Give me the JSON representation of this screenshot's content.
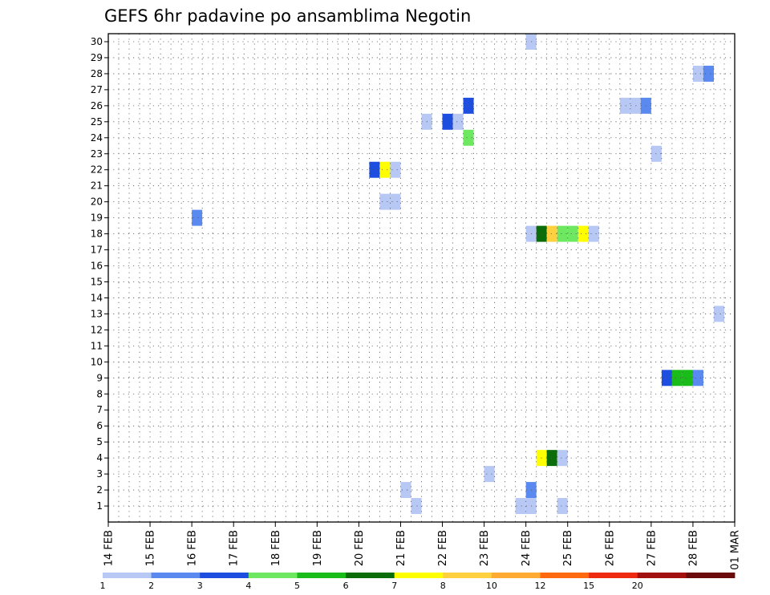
{
  "chart_data": {
    "type": "heatmap",
    "title": "GEFS 6hr padavine po ansamblima Negotin",
    "xlabel": "",
    "ylabel": "",
    "x_tick_labels": [
      "14 FEB",
      "15 FEB",
      "16 FEB",
      "17 FEB",
      "18 FEB",
      "19 FEB",
      "20 FEB",
      "21 FEB",
      "22 FEB",
      "23 FEB",
      "24 FEB",
      "25 FEB",
      "26 FEB",
      "27 FEB",
      "28 FEB",
      "01 MAR"
    ],
    "x_range_days": [
      0,
      15
    ],
    "time_step_hours": 6,
    "y_members": [
      1,
      2,
      3,
      4,
      5,
      6,
      7,
      8,
      9,
      10,
      11,
      12,
      13,
      14,
      15,
      16,
      17,
      18,
      19,
      20,
      21,
      22,
      23,
      24,
      25,
      26,
      27,
      28,
      29,
      30
    ],
    "grid": true,
    "colorbar": {
      "labels": [
        "1",
        "2",
        "3",
        "4",
        "5",
        "6",
        "7",
        "8",
        "10",
        "12",
        "15",
        "20"
      ],
      "colors": [
        "#b7c8f5",
        "#5a8af0",
        "#1d4ee0",
        "#6ee860",
        "#19bc19",
        "#0a6d0a",
        "#ffff00",
        "#ffd040",
        "#ffaa33",
        "#ff6a10",
        "#ee2a10",
        "#a31010",
        "#6a0a0a"
      ]
    },
    "cells": [
      {
        "member": 30,
        "day": 10.0,
        "value": 1.5
      },
      {
        "member": 28,
        "day": 14.0,
        "value": 1.5
      },
      {
        "member": 28,
        "day": 14.25,
        "value": 2.5
      },
      {
        "member": 26,
        "day": 8.5,
        "value": 3.5
      },
      {
        "member": 26,
        "day": 12.25,
        "value": 1.5
      },
      {
        "member": 26,
        "day": 12.5,
        "value": 1.5
      },
      {
        "member": 26,
        "day": 12.75,
        "value": 2.5
      },
      {
        "member": 25,
        "day": 7.5,
        "value": 1.5
      },
      {
        "member": 25,
        "day": 8.0,
        "value": 3.5
      },
      {
        "member": 25,
        "day": 8.25,
        "value": 1.5
      },
      {
        "member": 24,
        "day": 8.5,
        "value": 4.5
      },
      {
        "member": 23,
        "day": 13.0,
        "value": 1.5
      },
      {
        "member": 22,
        "day": 6.25,
        "value": 3.5
      },
      {
        "member": 22,
        "day": 6.5,
        "value": 7.5
      },
      {
        "member": 22,
        "day": 6.75,
        "value": 1.5
      },
      {
        "member": 20,
        "day": 6.5,
        "value": 1.5
      },
      {
        "member": 20,
        "day": 6.75,
        "value": 1.5
      },
      {
        "member": 19,
        "day": 2.0,
        "value": 2.5
      },
      {
        "member": 18,
        "day": 10.0,
        "value": 1.5
      },
      {
        "member": 18,
        "day": 10.25,
        "value": 6.5
      },
      {
        "member": 18,
        "day": 10.5,
        "value": 9
      },
      {
        "member": 18,
        "day": 10.75,
        "value": 4.5
      },
      {
        "member": 18,
        "day": 11.0,
        "value": 4.5
      },
      {
        "member": 18,
        "day": 11.25,
        "value": 7.5
      },
      {
        "member": 18,
        "day": 11.5,
        "value": 1.5
      },
      {
        "member": 13,
        "day": 14.5,
        "value": 1.5
      },
      {
        "member": 9,
        "day": 13.25,
        "value": 3.5
      },
      {
        "member": 9,
        "day": 13.5,
        "value": 5.5
      },
      {
        "member": 9,
        "day": 13.75,
        "value": 5.5
      },
      {
        "member": 9,
        "day": 14.0,
        "value": 2.5
      },
      {
        "member": 4,
        "day": 10.25,
        "value": 7.5
      },
      {
        "member": 4,
        "day": 10.5,
        "value": 6.5
      },
      {
        "member": 4,
        "day": 10.75,
        "value": 1.5
      },
      {
        "member": 3,
        "day": 9.0,
        "value": 1.5
      },
      {
        "member": 2,
        "day": 10.0,
        "value": 2.5
      },
      {
        "member": 2,
        "day": 7.0,
        "value": 1.5
      },
      {
        "member": 1,
        "day": 7.25,
        "value": 1.5
      },
      {
        "member": 1,
        "day": 9.75,
        "value": 1.5
      },
      {
        "member": 1,
        "day": 10.0,
        "value": 1.5
      },
      {
        "member": 1,
        "day": 10.75,
        "value": 1.5
      }
    ]
  }
}
